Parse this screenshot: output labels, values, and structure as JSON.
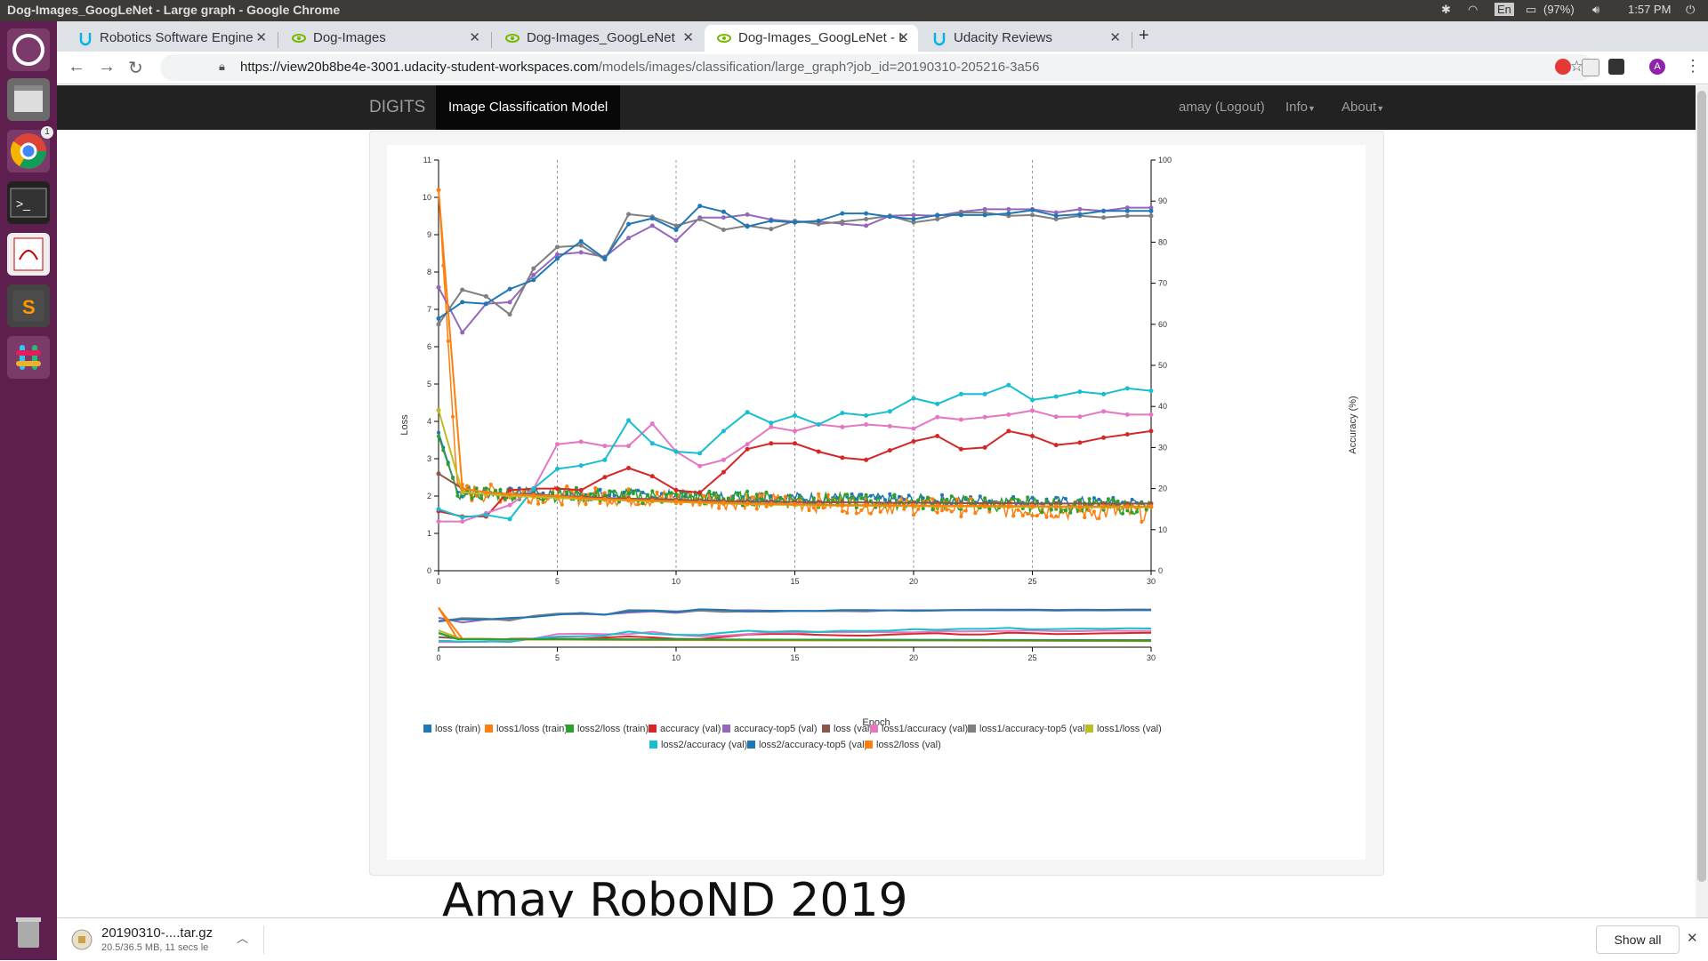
{
  "window": {
    "title": "Dog-Images_GoogLeNet - Large graph - Google Chrome"
  },
  "system": {
    "keyboard": "En",
    "battery": "(97%)",
    "clock": "1:57 PM"
  },
  "tabs": [
    {
      "label": "Robotics Software Engine",
      "icon": "udacity-icon"
    },
    {
      "label": "Dog-Images",
      "icon": "nvidia-icon"
    },
    {
      "label": "Dog-Images_GoogLeNet",
      "icon": "nvidia-icon"
    },
    {
      "label": "Dog-Images_GoogLeNet - L",
      "icon": "nvidia-icon",
      "active": true
    },
    {
      "label": "Udacity Reviews",
      "icon": "udacity-icon"
    }
  ],
  "address": {
    "host": "https://view20b8be4e-3001.udacity-student-workspaces.com",
    "path": "/models/images/classification/large_graph?job_id=20190310-205216-3a56"
  },
  "digits": {
    "brand": "DIGITS",
    "active_item": "Image Classification Model",
    "user": "amay (Logout)",
    "info": "Info",
    "about": "About"
  },
  "watermark": "Amay RoboND 2019",
  "download": {
    "name": "20190310-....tar.gz",
    "status": "20.5/36.5 MB, 11 secs le",
    "show_all": "Show all"
  },
  "launcher_badge": "1",
  "colors": {
    "loss_train": "#1f77b4",
    "loss1_loss_train": "#ff7f0e",
    "loss2_loss_train": "#2ca02c",
    "accuracy_val": "#d62728",
    "accuracy_top5_val": "#9467bd",
    "loss_val": "#8c564b",
    "loss1_accuracy_val": "#e377c2",
    "loss1_accuracy_top5_val": "#7f7f7f",
    "loss1_loss_val": "#bcbd22",
    "loss2_accuracy_val": "#17becf",
    "loss2_accuracy_top5_val": "#1f77b4",
    "loss2_loss_val": "#ff7f0e"
  },
  "chart_data": {
    "type": "line",
    "xlabel": "Epoch",
    "ylabel": "Loss",
    "y2label": "Accuracy (%)",
    "xlim": [
      0,
      30
    ],
    "ylim": [
      0,
      11
    ],
    "y2lim": [
      0,
      100
    ],
    "x_ticks": [
      "0",
      "5",
      "10",
      "15",
      "20",
      "25",
      "30"
    ],
    "y_ticks": [
      "0",
      "1",
      "2",
      "3",
      "4",
      "5",
      "6",
      "7",
      "8",
      "9",
      "10",
      "11"
    ],
    "y2_ticks": [
      "0",
      "10",
      "20",
      "30",
      "40",
      "50",
      "60",
      "70",
      "80",
      "90",
      "100"
    ],
    "grid": "vertical dashed at x ticks",
    "legend_position": "bottom",
    "legend": [
      "loss (train)",
      "loss1/loss (train)",
      "loss2/loss (train)",
      "accuracy (val)",
      "accuracy-top5 (val)",
      "loss (val)",
      "loss1/accuracy (val)",
      "loss1/accuracy-top5 (val)",
      "loss1/loss (val)",
      "loss2/accuracy (val)",
      "loss2/accuracy-top5 (val)",
      "loss2/loss (val)"
    ],
    "val_epochs": [
      0,
      1,
      2,
      3,
      4,
      5,
      6,
      7,
      8,
      9,
      10,
      11,
      12,
      13,
      14,
      15,
      16,
      17,
      18,
      19,
      20,
      21,
      22,
      23,
      24,
      25,
      26,
      27,
      28,
      29,
      30
    ],
    "series": [
      {
        "name": "accuracy (val)",
        "axis": "right",
        "color": "#d62728",
        "values": [
          14.5,
          13.2,
          13.2,
          19.6,
          20,
          20,
          19.6,
          22.8,
          25,
          23,
          19.6,
          19,
          24,
          29.6,
          31,
          31,
          29,
          27.5,
          27,
          29.3,
          31.5,
          32.8,
          29.6,
          30,
          34,
          32.8,
          30.6,
          31.2,
          32.4,
          33.2,
          34
        ]
      },
      {
        "name": "accuracy-top5 (val)",
        "axis": "right",
        "color": "#9467bd",
        "values": [
          69,
          58,
          65,
          65.4,
          72,
          77,
          77.5,
          76.4,
          81,
          84,
          80.4,
          86,
          86,
          86.7,
          85.5,
          85,
          85,
          84.5,
          84,
          86.4,
          86.6,
          86.4,
          87.4,
          88,
          88,
          88,
          87.2,
          88,
          87.6,
          88.4,
          88.4
        ]
      },
      {
        "name": "loss1/accuracy (val)",
        "axis": "right",
        "color": "#e377c2",
        "values": [
          12,
          12,
          14,
          16,
          20,
          30.8,
          31.4,
          30.4,
          30.4,
          35.8,
          29,
          25.5,
          27,
          30.8,
          35,
          34,
          35.6,
          35,
          35.6,
          35.2,
          34.6,
          37.4,
          36.8,
          37.4,
          38,
          39,
          37.5,
          37.5,
          38.8,
          38,
          38
        ]
      },
      {
        "name": "loss1/accuracy-top5 (val)",
        "axis": "right",
        "color": "#7f7f7f",
        "values": [
          60,
          68.4,
          66.8,
          62.4,
          73.6,
          78.8,
          79.2,
          75.8,
          86.8,
          86.2,
          84,
          85.6,
          83,
          84,
          83.2,
          85.2,
          84.4,
          85,
          85.6,
          86.4,
          84.8,
          85.6,
          87.2,
          87.2,
          86.4,
          86.6,
          85.6,
          86.4,
          86,
          86.4,
          86.4
        ]
      },
      {
        "name": "loss2/accuracy (val)",
        "axis": "right",
        "color": "#17becf",
        "values": [
          15,
          13,
          13.6,
          12.6,
          20,
          24.8,
          25.6,
          27,
          36.6,
          31,
          29,
          28.6,
          34,
          38.6,
          36,
          37.8,
          35.6,
          38.4,
          37.8,
          38.8,
          42,
          40.6,
          43,
          43,
          45.2,
          41.6,
          42.4,
          43.6,
          43,
          44.4,
          43.8
        ]
      },
      {
        "name": "loss2/accuracy-top5 (val)",
        "axis": "right",
        "color": "#1f77b4",
        "values": [
          61.4,
          65.4,
          65,
          68.6,
          70.8,
          76,
          80.2,
          76,
          84.4,
          85.8,
          83,
          88.8,
          87.4,
          83.8,
          85.2,
          84.8,
          85.2,
          87,
          87,
          86.2,
          85.6,
          86.6,
          86.6,
          86.6,
          87,
          87.8,
          86.4,
          86.8,
          87.6,
          87.6,
          87.6
        ]
      },
      {
        "name": "loss (val)",
        "axis": "left",
        "color": "#8c564b",
        "values": [
          2.6,
          2.2,
          2.1,
          2.05,
          2.05,
          2.0,
          1.98,
          1.95,
          1.93,
          1.92,
          1.9,
          1.88,
          1.87,
          1.85,
          1.85,
          1.84,
          1.84,
          1.83,
          1.83,
          1.82,
          1.82,
          1.82,
          1.81,
          1.81,
          1.81,
          1.8,
          1.8,
          1.8,
          1.8,
          1.8,
          1.8
        ]
      },
      {
        "name": "loss1/loss (val)",
        "axis": "left",
        "color": "#bcbd22",
        "values": [
          4.3,
          2.1,
          2.05,
          2.0,
          1.98,
          1.95,
          1.92,
          1.9,
          1.88,
          1.86,
          1.84,
          1.82,
          1.8,
          1.78,
          1.77,
          1.76,
          1.75,
          1.74,
          1.74,
          1.73,
          1.73,
          1.72,
          1.72,
          1.72,
          1.71,
          1.71,
          1.71,
          1.7,
          1.7,
          1.7,
          1.7
        ]
      },
      {
        "name": "loss2/loss (val)",
        "axis": "left",
        "color": "#ff7f0e",
        "values": [
          10.2,
          2.2,
          2.1,
          2.05,
          2.02,
          2.0,
          1.95,
          1.92,
          1.9,
          1.88,
          1.86,
          1.84,
          1.82,
          1.8,
          1.79,
          1.78,
          1.77,
          1.76,
          1.76,
          1.75,
          1.75,
          1.74,
          1.74,
          1.73,
          1.73,
          1.73,
          1.72,
          1.72,
          1.72,
          1.72,
          1.72
        ]
      }
    ],
    "train_series_note_free": true,
    "train_series": [
      {
        "name": "loss (train)",
        "color": "#1f77b4",
        "start": 3.7,
        "plateau_start": 2.1,
        "plateau_end": 1.8,
        "noise": 0.15
      },
      {
        "name": "loss1/loss (train)",
        "color": "#ff7f0e",
        "start": 10.2,
        "plateau_start": 2.1,
        "plateau_end": 1.55,
        "noise": 0.25
      },
      {
        "name": "loss2/loss (train)",
        "color": "#2ca02c",
        "start": 3.6,
        "plateau_start": 2.1,
        "plateau_end": 1.7,
        "noise": 0.2
      }
    ]
  }
}
